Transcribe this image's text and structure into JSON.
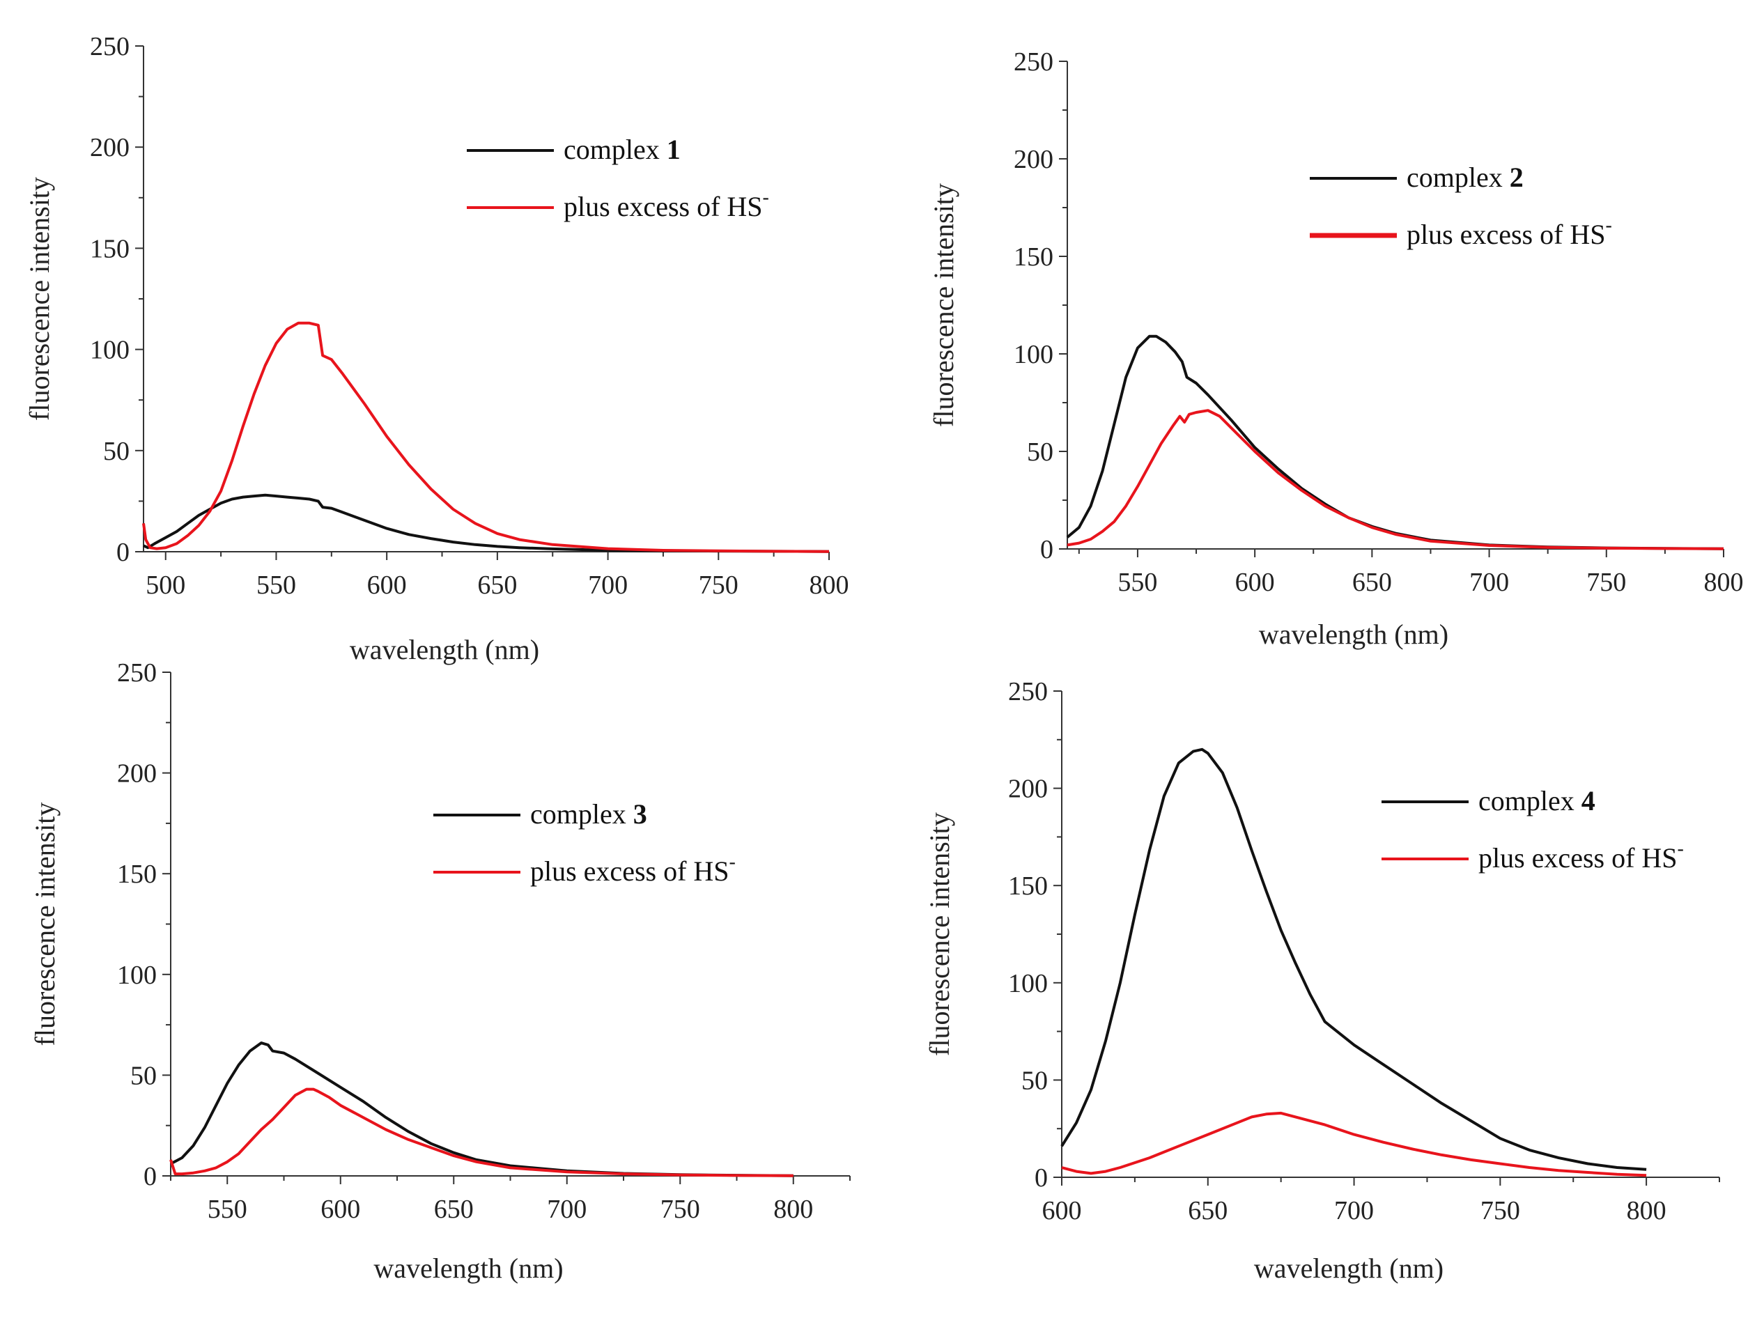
{
  "chart_data": [
    {
      "type": "line",
      "xlabel": "wavelength (nm)",
      "ylabel": "fluorescence intensity",
      "xlim": [
        490,
        800
      ],
      "ylim": [
        0,
        250
      ],
      "xticks": [
        "500",
        "550",
        "600",
        "650",
        "700",
        "750",
        "800"
      ],
      "yticks": [
        "0",
        "50",
        "100",
        "150",
        "200",
        "250"
      ],
      "legend": {
        "position": "top-right",
        "entries": [
          {
            "prefix": "complex ",
            "id": "1",
            "color": "#111111"
          },
          {
            "prefix": "plus excess of HS",
            "sup": "-",
            "color": "#e8141c"
          }
        ]
      },
      "series": [
        {
          "name": "complex 1",
          "color": "#111111",
          "x": [
            490,
            492,
            495,
            500,
            505,
            510,
            515,
            520,
            525,
            530,
            535,
            540,
            545,
            550,
            555,
            560,
            565,
            569,
            571,
            575,
            580,
            590,
            600,
            610,
            620,
            630,
            640,
            650,
            660,
            675,
            700,
            725,
            750,
            775,
            800
          ],
          "values": [
            3,
            2,
            4,
            7,
            10,
            14,
            18,
            21,
            24,
            26,
            27,
            27.5,
            28,
            27.5,
            27,
            26.5,
            26,
            25,
            22,
            21.5,
            19.5,
            15.5,
            11.5,
            8.5,
            6.5,
            4.8,
            3.5,
            2.6,
            2,
            1.4,
            0.7,
            0.4,
            0.3,
            0.2,
            0.1
          ]
        },
        {
          "name": "plus excess of HS-",
          "color": "#e8141c",
          "x": [
            490,
            491,
            493,
            496,
            500,
            505,
            510,
            515,
            520,
            525,
            530,
            535,
            540,
            545,
            550,
            555,
            560,
            565,
            569,
            571,
            575,
            580,
            590,
            600,
            610,
            620,
            630,
            640,
            650,
            660,
            675,
            700,
            725,
            750,
            775,
            800
          ],
          "values": [
            14,
            6,
            2,
            1.5,
            2,
            4,
            8,
            13,
            20,
            30,
            45,
            62,
            78,
            92,
            103,
            110,
            113,
            113,
            112,
            97,
            95,
            88,
            73,
            57,
            43,
            31,
            21,
            14,
            9,
            6,
            3.5,
            1.5,
            0.7,
            0.4,
            0.2,
            0.1
          ]
        }
      ]
    },
    {
      "type": "line",
      "xlabel": "wavelength (nm)",
      "ylabel": "fluorescence intensity",
      "xlim": [
        520,
        800
      ],
      "ylim": [
        0,
        250
      ],
      "xticks": [
        "550",
        "600",
        "650",
        "700",
        "750",
        "800"
      ],
      "yticks": [
        "0",
        "50",
        "100",
        "150",
        "200",
        "250"
      ],
      "legend": {
        "position": "top-right",
        "entries": [
          {
            "prefix": "complex ",
            "id": "2",
            "color": "#111111"
          },
          {
            "prefix": "plus excess of HS",
            "sup": "-",
            "color": "#e8141c"
          }
        ]
      },
      "series": [
        {
          "name": "complex 2",
          "color": "#111111",
          "x": [
            520,
            525,
            530,
            535,
            540,
            545,
            550,
            555,
            558,
            562,
            566,
            569,
            571,
            575,
            580,
            590,
            600,
            610,
            620,
            630,
            640,
            650,
            660,
            675,
            700,
            725,
            750,
            775,
            800
          ],
          "values": [
            6,
            11,
            22,
            40,
            64,
            88,
            103,
            109,
            109,
            106,
            101,
            96,
            88,
            85,
            79,
            66,
            52,
            41,
            31,
            23,
            16,
            11.5,
            8,
            4.5,
            2,
            1,
            0.5,
            0.3,
            0.1
          ]
        },
        {
          "name": "plus excess of HS-",
          "color": "#e8141c",
          "x": [
            520,
            525,
            530,
            535,
            540,
            545,
            550,
            555,
            560,
            565,
            568,
            570,
            572,
            575,
            580,
            585,
            590,
            600,
            610,
            620,
            630,
            640,
            650,
            660,
            675,
            700,
            725,
            750,
            775,
            800
          ],
          "values": [
            2,
            3,
            5,
            9,
            14,
            22,
            32,
            43,
            54,
            63,
            68,
            65,
            69,
            70,
            71,
            68,
            62,
            50,
            39,
            30,
            22,
            16,
            11,
            7.5,
            4,
            1.8,
            0.8,
            0.4,
            0.2,
            0.1
          ]
        }
      ]
    },
    {
      "type": "line",
      "xlabel": "wavelength (nm)",
      "ylabel": "fluorescence intensity",
      "xlim": [
        525,
        825
      ],
      "ylim": [
        0,
        250
      ],
      "xticks": [
        "550",
        "600",
        "650",
        "700",
        "750",
        "800"
      ],
      "yticks": [
        "0",
        "50",
        "100",
        "150",
        "200",
        "250"
      ],
      "legend": {
        "position": "center-right",
        "entries": [
          {
            "prefix": "complex ",
            "id": "3",
            "color": "#111111"
          },
          {
            "prefix": "plus excess of HS",
            "sup": "-",
            "color": "#e8141c"
          }
        ]
      },
      "series": [
        {
          "name": "complex 3",
          "color": "#111111",
          "x": [
            525,
            530,
            535,
            540,
            545,
            550,
            555,
            560,
            565,
            568,
            570,
            575,
            580,
            590,
            600,
            610,
            620,
            630,
            640,
            650,
            660,
            675,
            700,
            725,
            750,
            775,
            800
          ],
          "values": [
            6,
            9,
            15,
            24,
            35,
            46,
            55,
            62,
            66,
            65,
            62,
            61,
            58,
            51,
            44,
            37,
            29,
            22,
            16,
            11.5,
            8,
            5,
            2.5,
            1.2,
            0.6,
            0.3,
            0.1
          ]
        },
        {
          "name": "plus excess of HS-",
          "color": "#e8141c",
          "x": [
            525,
            527,
            530,
            535,
            540,
            545,
            550,
            555,
            560,
            565,
            570,
            575,
            580,
            585,
            588,
            590,
            595,
            600,
            610,
            620,
            630,
            640,
            650,
            660,
            675,
            700,
            725,
            750,
            775,
            800
          ],
          "values": [
            8,
            1,
            1,
            1.5,
            2.5,
            4,
            7,
            11,
            17,
            23,
            28,
            34,
            40,
            43,
            43,
            42,
            39,
            35,
            29,
            23,
            18,
            14,
            10,
            7,
            4,
            2,
            1,
            0.5,
            0.2,
            0.1
          ]
        }
      ]
    },
    {
      "type": "line",
      "xlabel": "wavelength (nm)",
      "ylabel": "fluorescence intensity",
      "xlim": [
        600,
        825
      ],
      "ylim": [
        0,
        250
      ],
      "xticks": [
        "600",
        "650",
        "700",
        "750",
        "800"
      ],
      "yticks": [
        "0",
        "50",
        "100",
        "150",
        "200",
        "250"
      ],
      "legend": {
        "position": "top-right",
        "entries": [
          {
            "prefix": "complex ",
            "id": "4",
            "color": "#111111"
          },
          {
            "prefix": "plus excess of HS",
            "sup": "-",
            "color": "#e8141c"
          }
        ]
      },
      "series": [
        {
          "name": "complex 4",
          "color": "#111111",
          "x": [
            600,
            605,
            610,
            615,
            620,
            625,
            630,
            635,
            640,
            645,
            648,
            650,
            655,
            660,
            665,
            670,
            675,
            680,
            685,
            690,
            700,
            710,
            720,
            730,
            740,
            750,
            760,
            770,
            780,
            790,
            800
          ],
          "values": [
            16,
            28,
            45,
            70,
            100,
            135,
            168,
            196,
            213,
            219,
            220,
            218,
            208,
            190,
            168,
            147,
            127,
            110,
            94,
            80,
            68,
            58,
            48,
            38,
            29,
            20,
            14,
            10,
            7,
            5,
            4
          ]
        },
        {
          "name": "plus excess of HS-",
          "color": "#e8141c",
          "x": [
            600,
            605,
            610,
            615,
            620,
            630,
            640,
            650,
            660,
            665,
            670,
            675,
            680,
            690,
            700,
            710,
            720,
            730,
            740,
            750,
            760,
            770,
            780,
            790,
            800
          ],
          "values": [
            5,
            3,
            2,
            3,
            5,
            10,
            16,
            22,
            28,
            31,
            32.5,
            33,
            31,
            27,
            22,
            18,
            14.5,
            11.5,
            9,
            7,
            5,
            3.5,
            2.5,
            1.5,
            1
          ]
        }
      ]
    }
  ]
}
